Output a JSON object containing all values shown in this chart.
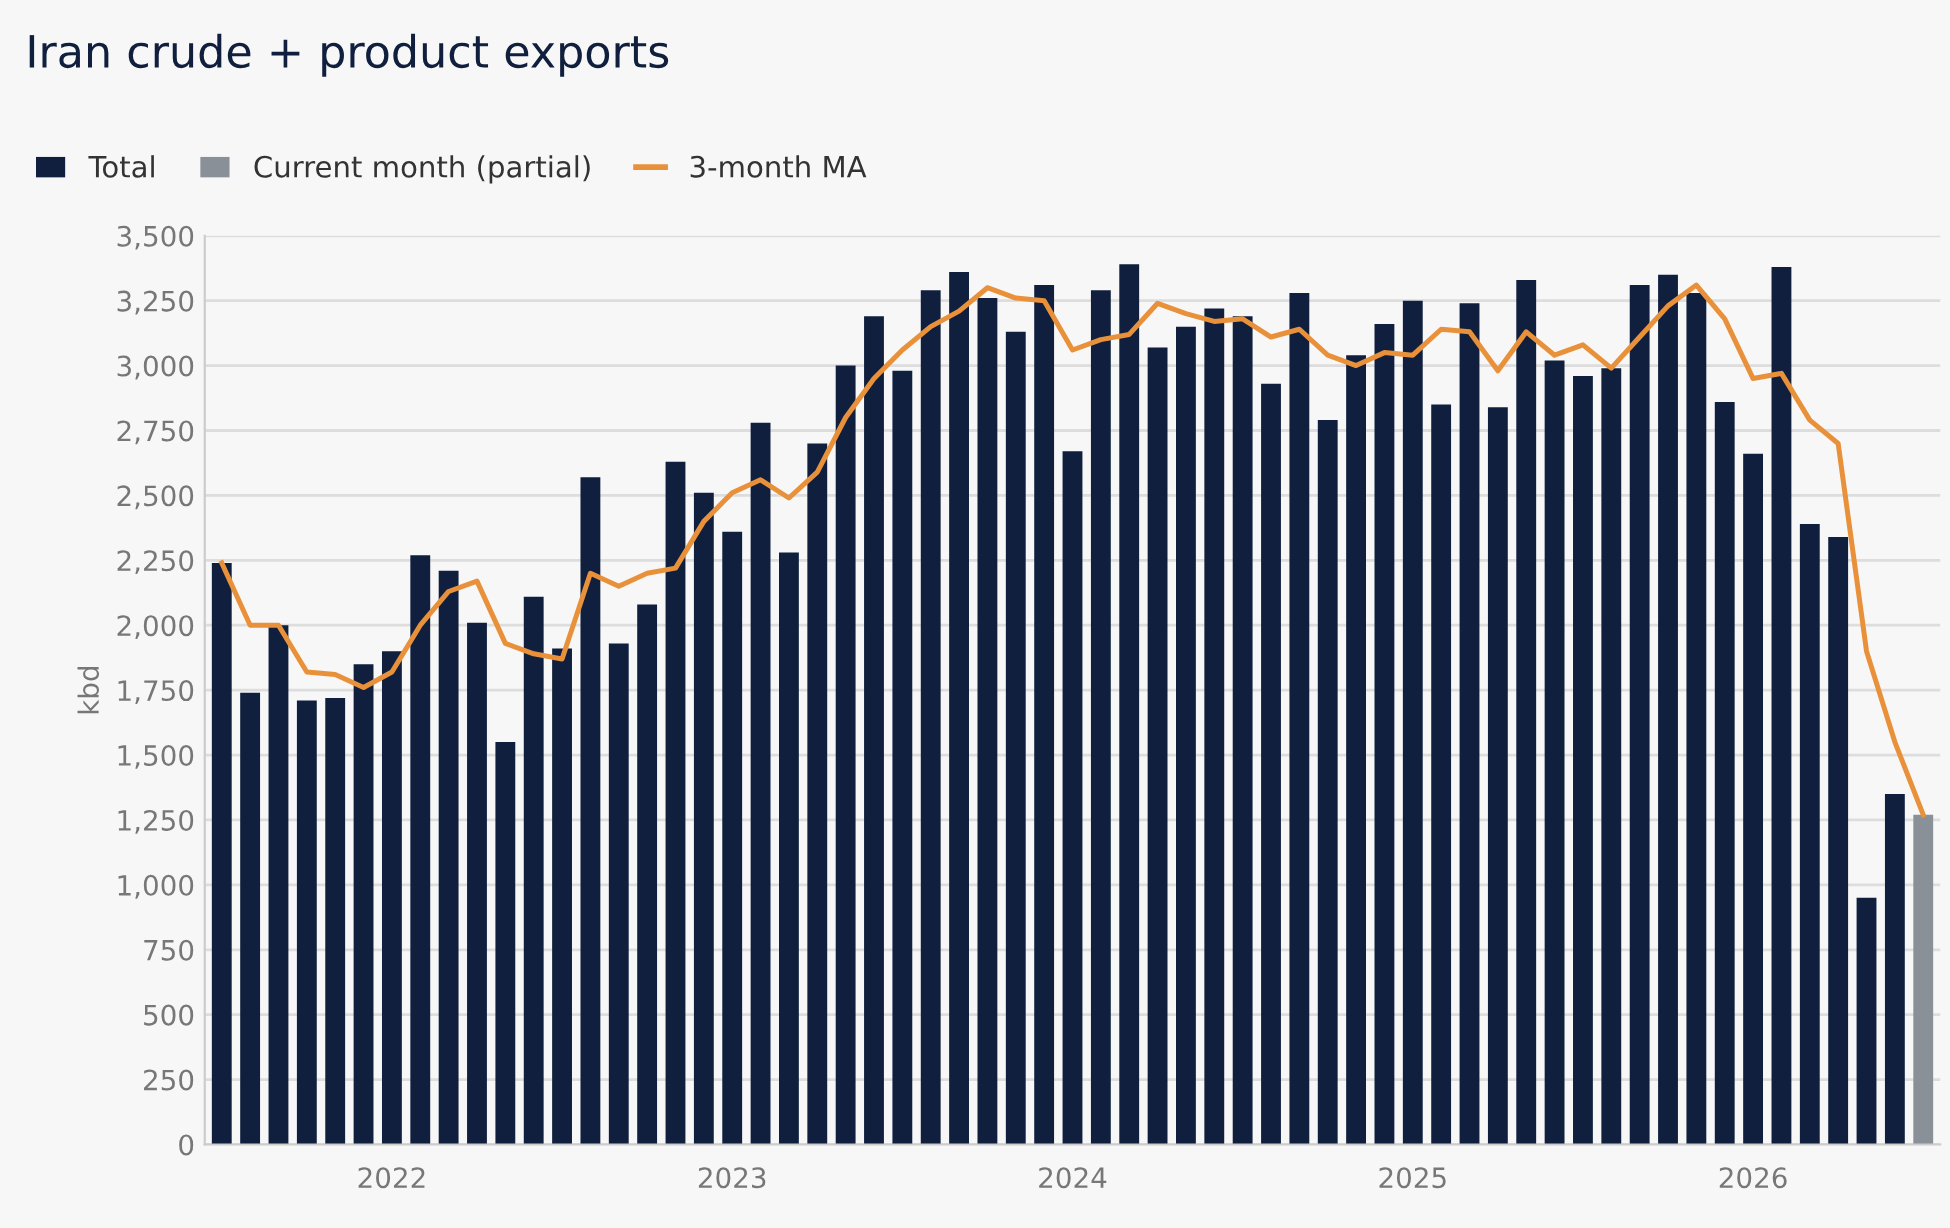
{
  "chart_data": {
    "type": "bar",
    "title": "Iran crude + product exports",
    "ylabel": "kbd",
    "categories": [
      null,
      null,
      null,
      null,
      null,
      null,
      "2022",
      null,
      null,
      null,
      null,
      null,
      null,
      null,
      null,
      null,
      null,
      null,
      "2023",
      null,
      null,
      null,
      null,
      null,
      null,
      null,
      null,
      null,
      null,
      null,
      "2024",
      null,
      null,
      null,
      null,
      null,
      null,
      null,
      null,
      null,
      null,
      null,
      "2025",
      null,
      null,
      null,
      null,
      null,
      null,
      null,
      null,
      null,
      null,
      null,
      "2026",
      null,
      null,
      null,
      null,
      null,
      null
    ],
    "series": [
      {
        "name": "Total",
        "color": "#0f1f3d",
        "values": [
          2240,
          1740,
          2000,
          1710,
          1720,
          1850,
          1900,
          2270,
          2210,
          2010,
          1550,
          2110,
          1910,
          2570,
          1930,
          2080,
          2630,
          2510,
          2360,
          2780,
          2280,
          2700,
          3000,
          3190,
          2980,
          3290,
          3360,
          3260,
          3130,
          3310,
          2670,
          3290,
          3390,
          3070,
          3150,
          3220,
          3190,
          2930,
          3280,
          2790,
          3040,
          3160,
          3250,
          2850,
          3240,
          2840,
          3330,
          3020,
          2960,
          2990,
          3310,
          3350,
          3280,
          2860,
          2660,
          3380,
          2390,
          2340,
          950,
          1350,
          null
        ]
      },
      {
        "name": "Current month (partial)",
        "color": "#8a9098",
        "values": [
          null,
          null,
          null,
          null,
          null,
          null,
          null,
          null,
          null,
          null,
          null,
          null,
          null,
          null,
          null,
          null,
          null,
          null,
          null,
          null,
          null,
          null,
          null,
          null,
          null,
          null,
          null,
          null,
          null,
          null,
          null,
          null,
          null,
          null,
          null,
          null,
          null,
          null,
          null,
          null,
          null,
          null,
          null,
          null,
          null,
          null,
          null,
          null,
          null,
          null,
          null,
          null,
          null,
          null,
          null,
          null,
          null,
          null,
          null,
          null,
          1270
        ]
      },
      {
        "name": "3-month MA",
        "type": "line",
        "color": "#e8913a",
        "values": [
          2240,
          2000,
          2000,
          1820,
          1810,
          1760,
          1820,
          2000,
          2130,
          2170,
          1930,
          1890,
          1870,
          2200,
          2150,
          2200,
          2220,
          2400,
          2510,
          2560,
          2490,
          2590,
          2800,
          2950,
          3060,
          3150,
          3210,
          3300,
          3260,
          3250,
          3060,
          3100,
          3120,
          3240,
          3200,
          3170,
          3180,
          3110,
          3140,
          3040,
          3000,
          3050,
          3040,
          3140,
          3130,
          2980,
          3130,
          3040,
          3080,
          2990,
          3110,
          3230,
          3310,
          3180,
          2950,
          2970,
          2790,
          2700,
          1900,
          1550,
          1270
        ]
      }
    ],
    "ylim": [
      0,
      3500
    ],
    "yticks": [
      0,
      250,
      500,
      750,
      {
        "value": 1000,
        "label": "1,000"
      },
      {
        "value": 1250,
        "label": "1,250"
      },
      {
        "value": 1500,
        "label": "1,500"
      },
      {
        "value": 1750,
        "label": "1,750"
      },
      {
        "value": 2000,
        "label": "2,000"
      },
      {
        "value": 2250,
        "label": "2,250"
      },
      {
        "value": 2500,
        "label": "2,500"
      },
      {
        "value": 2750,
        "label": "2,750"
      },
      {
        "value": 3000,
        "label": "3,000"
      },
      {
        "value": 3250,
        "label": "3,250"
      },
      {
        "value": 3500,
        "label": "3,500"
      }
    ],
    "grid": "y",
    "legend": "top left",
    "marker": "none",
    "line_style": "solid"
  }
}
